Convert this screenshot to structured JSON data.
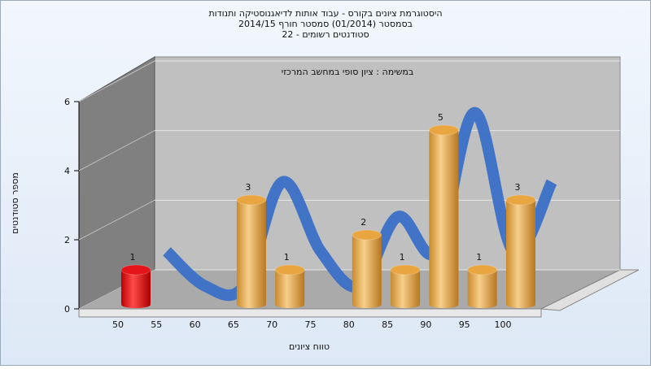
{
  "chart_data": {
    "type": "bar3d",
    "title": [
      "היסטוגרמת ציונים בקורס - עבוד אותות לדיאגנוסטיקה ותנודות",
      "בסמסטר  (01/2014)  סמסטר חורף 2014/15",
      "סטודנטים רשומים - 22"
    ],
    "subtitle": "במשימה : ציון סופי במחשב המרכזי",
    "x_label": "טווח ציונים",
    "y_label": "מספר סטודנטים",
    "categories": [
      "50",
      "55",
      "60",
      "65",
      "70",
      "75",
      "80",
      "85",
      "90",
      "95",
      "100"
    ],
    "values": [
      1,
      0,
      0,
      3,
      1,
      0,
      2,
      1,
      5,
      1,
      3
    ],
    "colors": [
      "#e3141a",
      "#e8a540",
      "#e8a540",
      "#e8a540",
      "#e8a540",
      "#e8a540",
      "#e8a540",
      "#e8a540",
      "#e8a540",
      "#e8a540",
      "#e8a540"
    ],
    "trend_color": "#3a70c6",
    "ylim": [
      0,
      6
    ],
    "yticks": [
      0,
      2,
      4,
      6
    ],
    "grid": true
  }
}
